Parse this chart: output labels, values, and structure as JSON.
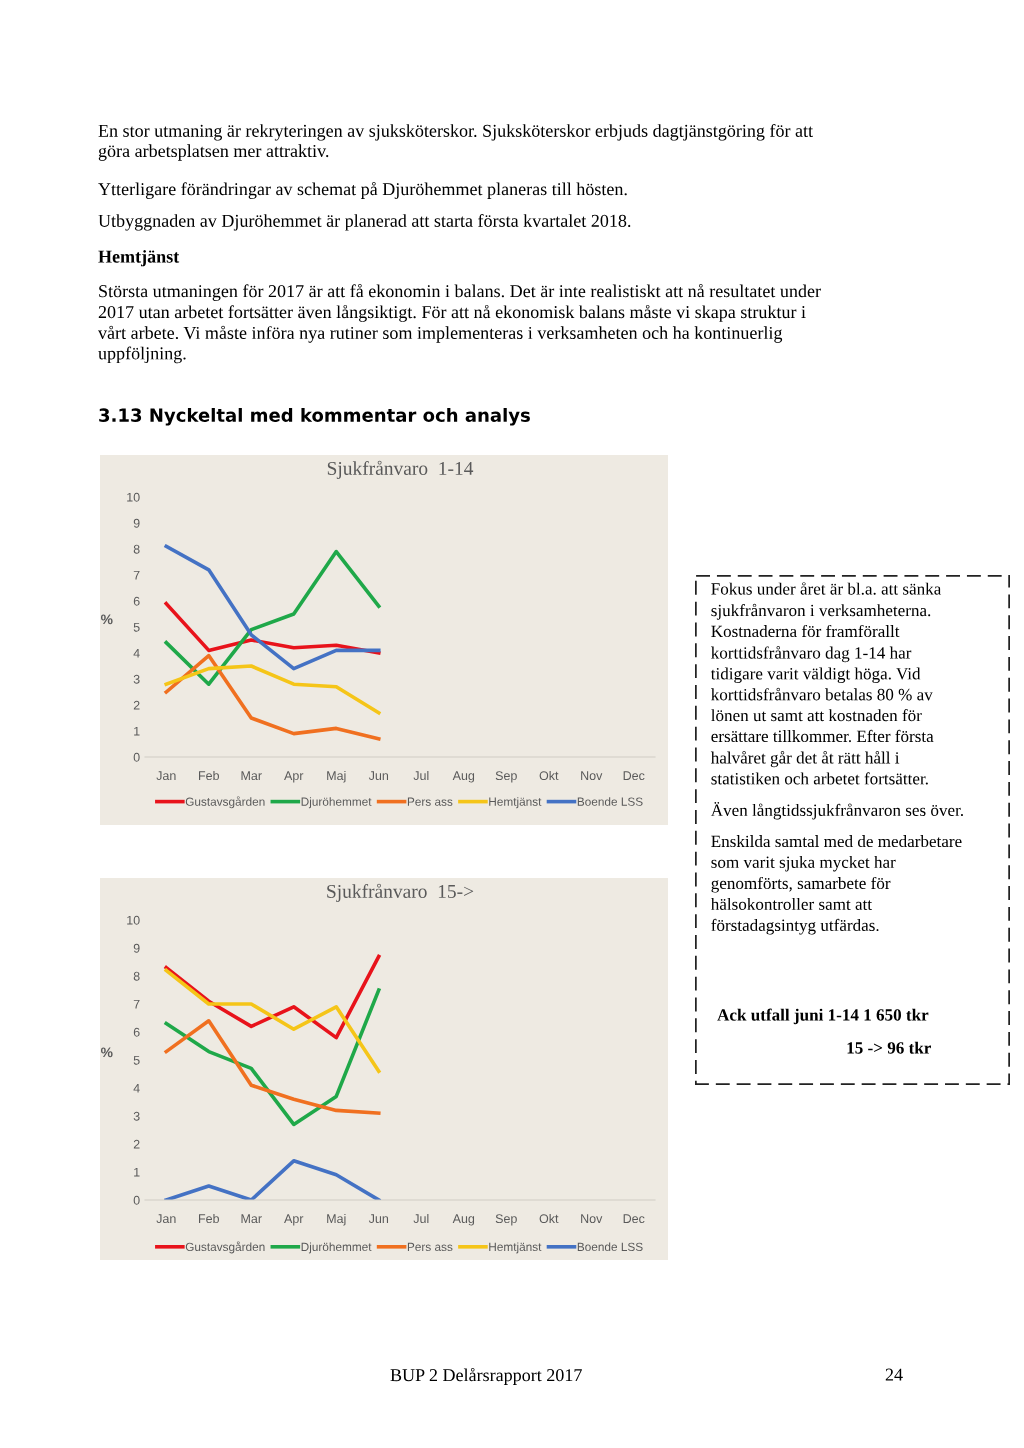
{
  "chart_data": [
    {
      "type": "line",
      "title": "Sjukfrånvaro  1-14",
      "ylabel": "%",
      "categories": [
        "Jan",
        "Feb",
        "Mar",
        "Apr",
        "Maj",
        "Jun",
        "Jul",
        "Aug",
        "Sep",
        "Okt",
        "Nov",
        "Dec"
      ],
      "series": [
        {
          "name": "Gustavsgården",
          "color": "#e8131b",
          "values": [
            5.9,
            4.1,
            4.5,
            4.2,
            4.3,
            4.0,
            null,
            null,
            null,
            null,
            null,
            null
          ]
        },
        {
          "name": "Djuröhemmet",
          "color": "#1fa849",
          "values": [
            4.4,
            2.8,
            4.9,
            5.5,
            7.9,
            5.8,
            null,
            null,
            null,
            null,
            null,
            null
          ]
        },
        {
          "name": "Pers ass",
          "color": "#f07020",
          "values": [
            2.5,
            3.9,
            1.5,
            0.9,
            1.1,
            0.7,
            null,
            null,
            null,
            null,
            null,
            null
          ]
        },
        {
          "name": "Hemtjänst",
          "color": "#f5c518",
          "values": [
            2.8,
            3.4,
            3.5,
            2.8,
            2.7,
            1.7,
            null,
            null,
            null,
            null,
            null,
            null
          ]
        },
        {
          "name": "Boende LSS",
          "color": "#4472c4",
          "values": [
            8.1,
            7.2,
            4.7,
            3.4,
            4.1,
            4.1,
            null,
            null,
            null,
            null,
            null,
            null
          ]
        }
      ],
      "ylim": [
        0,
        10
      ],
      "yticks": [
        0,
        1,
        2,
        3,
        4,
        5,
        6,
        7,
        8,
        9,
        10
      ],
      "grid": false,
      "legend": "bottom",
      "marker": "none",
      "line_style": "solid",
      "annotations": [
        "En stor utmaning är rekryteringen av sjuksköterskor. Sjuksköterskor erbjuds dagtjänstgöring för att\ngöra arbetsplatsen mer attraktiv.",
        "Ytterligare förändringar av schemat på Djuröhemmet planeras till hösten.",
        "Utbyggnaden av Djuröhemmet är planerad att starta första kvartalet 2018.",
        "Hemtjänst",
        "Största utmaningen för 2017 är att få ekonomin i balans. Det är inte realistiskt att nå resultatet under\n2017 utan arbetet fortsätter även långsiktigt. För att nå ekonomisk balans måste vi skapa struktur i\nvårt arbete. Vi måste införa nya rutiner som implementeras i verksamheten och ha kontinuerlig\nuppföljning.",
        "3.13 Nyckeltal med kommentar och analys"
      ]
    },
    {
      "type": "line",
      "title": "Sjukfrånvaro  15->",
      "ylabel": "%",
      "categories": [
        "Jan",
        "Feb",
        "Mar",
        "Apr",
        "Maj",
        "Jun",
        "Jul",
        "Aug",
        "Sep",
        "Okt",
        "Nov",
        "Dec"
      ],
      "series": [
        {
          "name": "Gustavsgården",
          "color": "#e8131b",
          "values": [
            8.3,
            7.1,
            6.2,
            6.9,
            5.8,
            8.7,
            null,
            null,
            null,
            null,
            null,
            null
          ]
        },
        {
          "name": "Djuröhemmet",
          "color": "#1fa849",
          "values": [
            6.3,
            5.3,
            4.7,
            2.7,
            3.7,
            7.5,
            null,
            null,
            null,
            null,
            null,
            null
          ]
        },
        {
          "name": "Pers ass",
          "color": "#f07020",
          "values": [
            5.3,
            6.4,
            4.1,
            3.6,
            3.2,
            3.1,
            null,
            null,
            null,
            null,
            null,
            null
          ]
        },
        {
          "name": "Hemtjänst",
          "color": "#f5c518",
          "values": [
            8.2,
            7.0,
            7.0,
            6.1,
            6.9,
            4.6,
            null,
            null,
            null,
            null,
            null,
            null
          ]
        },
        {
          "name": "Boende LSS",
          "color": "#4472c4",
          "values": [
            0,
            0.5,
            0,
            1.4,
            0.9,
            0,
            null,
            null,
            null,
            null,
            null,
            null
          ]
        }
      ],
      "ylim": [
        0,
        10
      ],
      "yticks": [
        0,
        1,
        2,
        3,
        4,
        5,
        6,
        7,
        8,
        9,
        10
      ],
      "grid": false,
      "legend": "bottom",
      "marker": "none",
      "line_style": "solid",
      "annotations": [
        "BUP 2 Delårsrapport 2017",
        "24"
      ]
    },
    {
      "type": "other",
      "annotations": [
        "Fokus under året är bl.a. att sänka\nsjukfrånvaron i verksamheterna.\nKostnaderna för framförallt\nkorttidsfrånvaro dag 1-14 har\ntidigare varit väldigt höga. Vid\nkorttidsfrånvaro betalas 80 % av\nlönen ut samt att kostnaden för\nersättare tillkommer. Efter första\nhalvåret går det åt rätt håll i\nstatistiken och arbetet fortsätter.",
        "Även långtidssjukfrånvaron ses över.",
        "Enskilda samtal med de medarbetare\nsom varit sjuka mycket har\ngenomförts, samarbete för\nhälsokontroller samt att\nförstadagsintyg utfärdas.",
        "Ack utfall juni 1-14 1 650 tkr",
        "15 -> 96 tkr"
      ]
    }
  ]
}
